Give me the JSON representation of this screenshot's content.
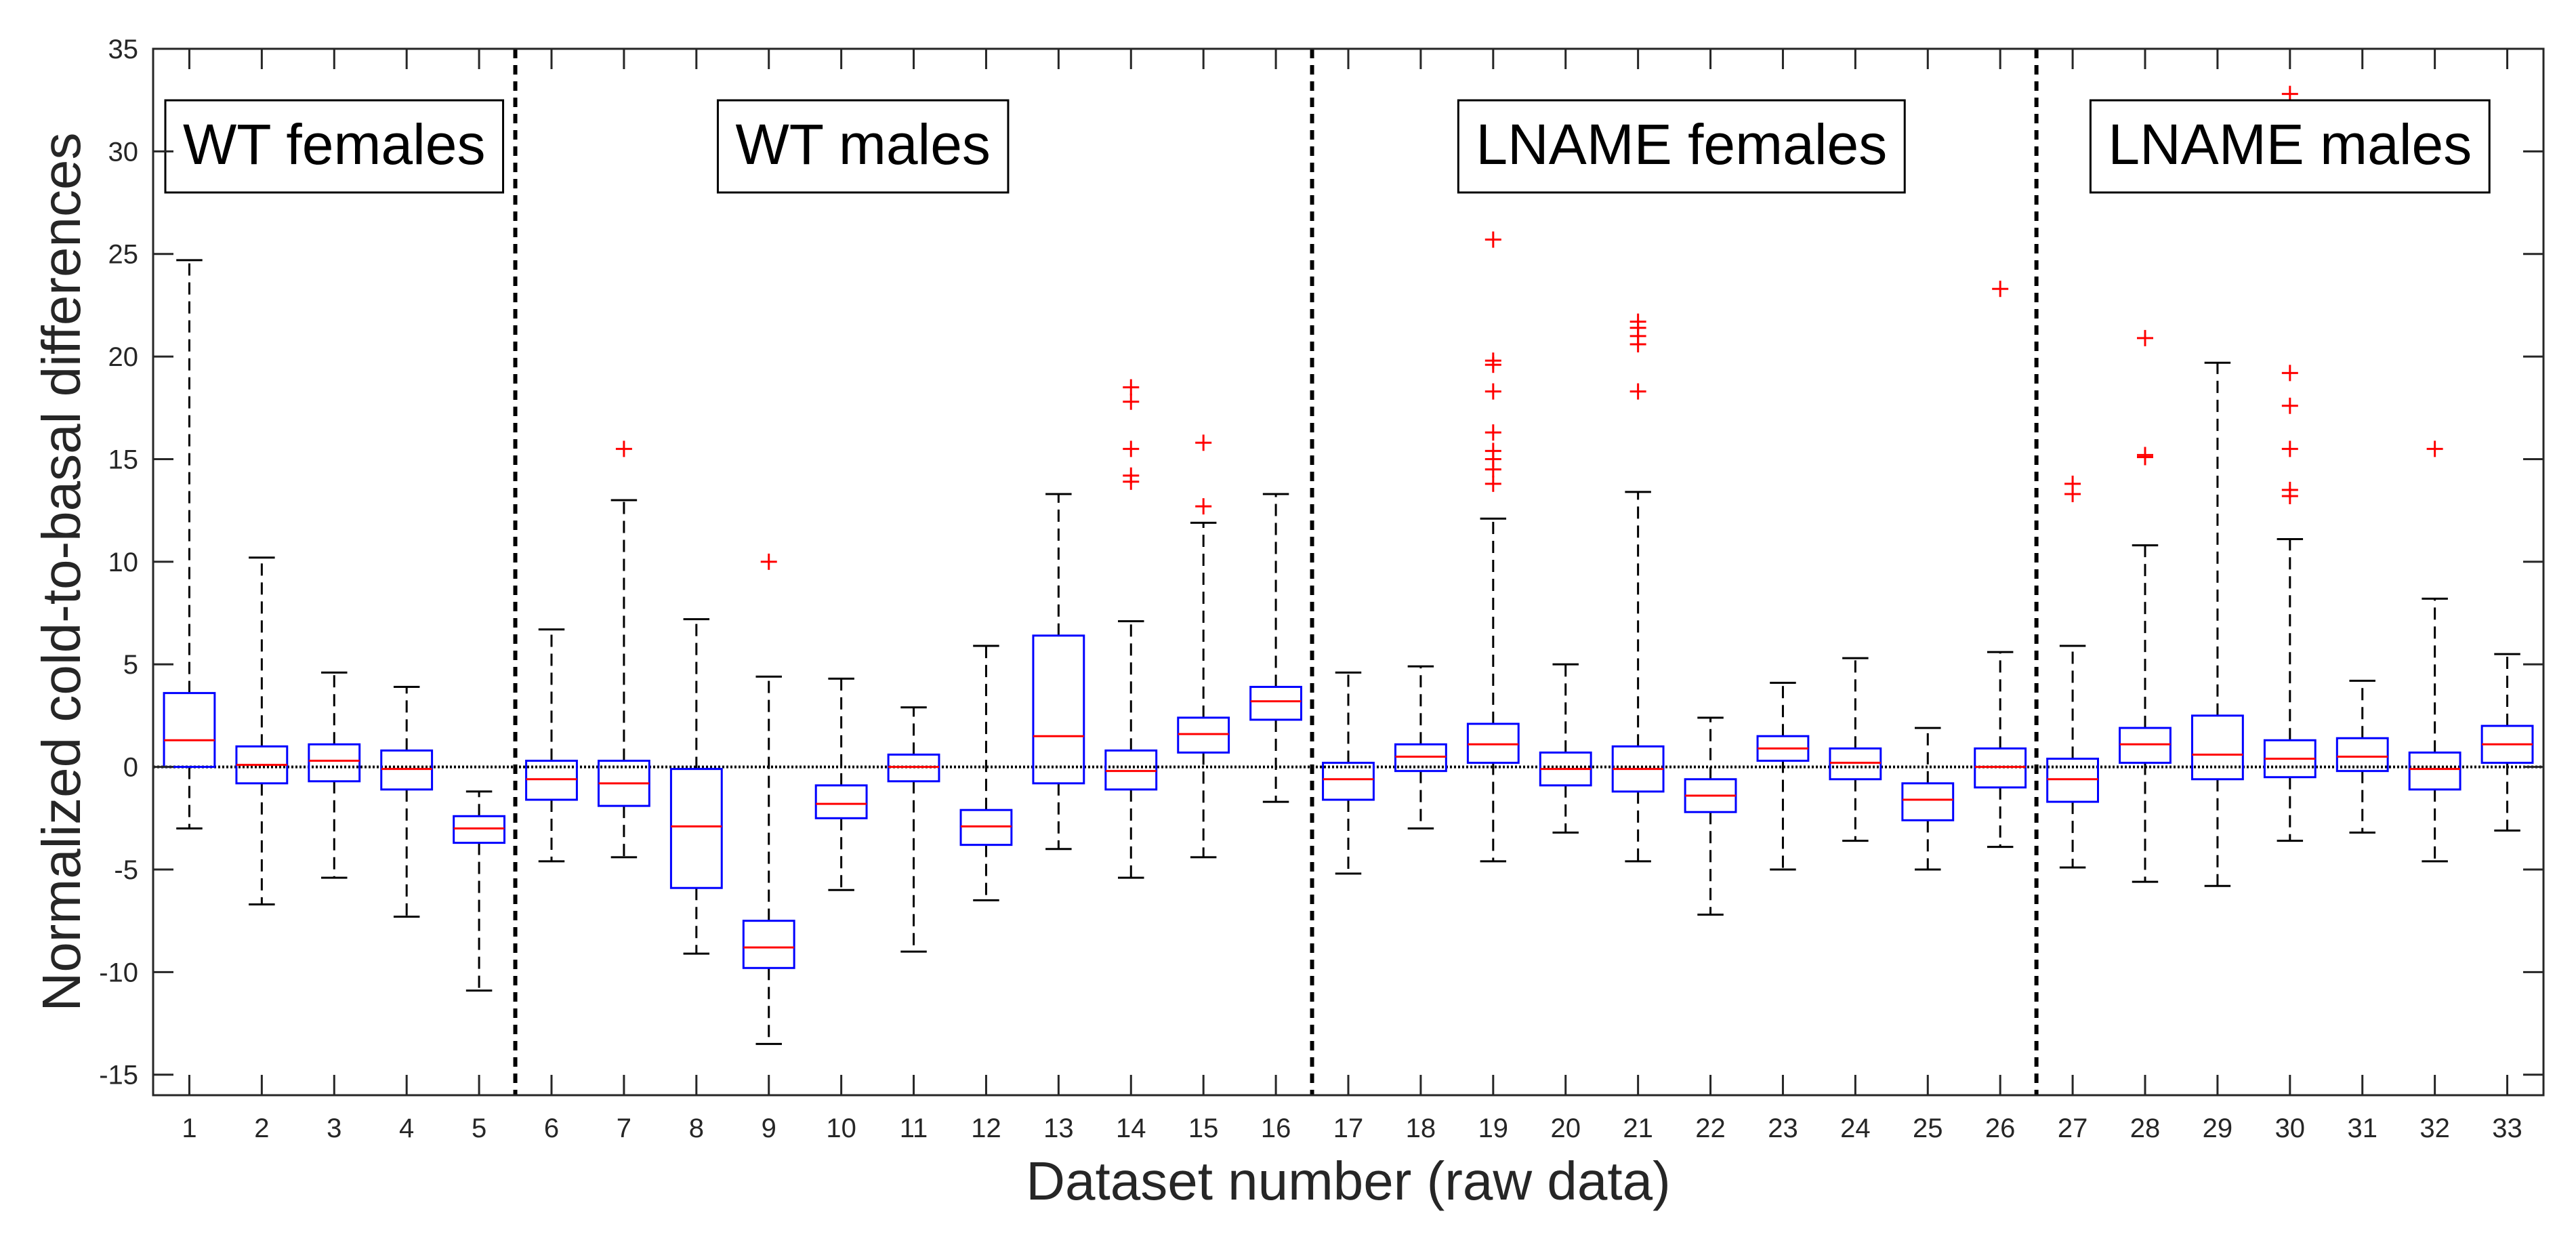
{
  "chart_data": {
    "type": "box",
    "title": "",
    "xlabel": "Dataset number (raw data)",
    "ylabel": "Normalized cold-to-basal differences",
    "xlim": [
      0.5,
      33.5
    ],
    "ylim": [
      -16,
      35
    ],
    "yticks": [
      -15,
      -10,
      -5,
      0,
      5,
      10,
      15,
      20,
      25,
      30,
      35
    ],
    "xticks": [
      1,
      2,
      3,
      4,
      5,
      6,
      7,
      8,
      9,
      10,
      11,
      12,
      13,
      14,
      15,
      16,
      17,
      18,
      19,
      20,
      21,
      22,
      23,
      24,
      25,
      26,
      27,
      28,
      29,
      30,
      31,
      32,
      33
    ],
    "reference_line_y": 0,
    "group_dividers_x": [
      5.5,
      16.5,
      26.5
    ],
    "groups": [
      {
        "label": "WT females",
        "center_x": 3.0
      },
      {
        "label": "WT males",
        "center_x": 10.3
      },
      {
        "label": "LNAME females",
        "center_x": 21.6
      },
      {
        "label": "LNAME males",
        "center_x": 30.0
      }
    ],
    "colors": {
      "box": "#0000ff",
      "median": "#ff0000",
      "outlier": "#ff0000",
      "whisker": "#000000",
      "axis": "#262626"
    },
    "boxes": [
      {
        "x": 1,
        "q1": 0.0,
        "median": 1.3,
        "q3": 3.6,
        "whisker_low": -3.0,
        "whisker_high": 24.7,
        "outliers": []
      },
      {
        "x": 2,
        "q1": -0.8,
        "median": 0.1,
        "q3": 1.0,
        "whisker_low": -6.7,
        "whisker_high": 10.2,
        "outliers": []
      },
      {
        "x": 3,
        "q1": -0.7,
        "median": 0.3,
        "q3": 1.1,
        "whisker_low": -5.4,
        "whisker_high": 4.6,
        "outliers": []
      },
      {
        "x": 4,
        "q1": -1.1,
        "median": -0.1,
        "q3": 0.8,
        "whisker_low": -7.3,
        "whisker_high": 3.9,
        "outliers": []
      },
      {
        "x": 5,
        "q1": -3.7,
        "median": -3.0,
        "q3": -2.4,
        "whisker_low": -10.9,
        "whisker_high": -1.2,
        "outliers": []
      },
      {
        "x": 6,
        "q1": -1.6,
        "median": -0.6,
        "q3": 0.3,
        "whisker_low": -4.6,
        "whisker_high": 6.7,
        "outliers": []
      },
      {
        "x": 7,
        "q1": -1.9,
        "median": -0.8,
        "q3": 0.3,
        "whisker_low": -4.4,
        "whisker_high": 13.0,
        "outliers": [
          15.5
        ]
      },
      {
        "x": 8,
        "q1": -5.9,
        "median": -2.9,
        "q3": -0.1,
        "whisker_low": -9.1,
        "whisker_high": 7.2,
        "outliers": []
      },
      {
        "x": 9,
        "q1": -9.8,
        "median": -8.8,
        "q3": -7.5,
        "whisker_low": -13.5,
        "whisker_high": 4.4,
        "outliers": [
          10.0
        ]
      },
      {
        "x": 10,
        "q1": -2.5,
        "median": -1.8,
        "q3": -0.9,
        "whisker_low": -6.0,
        "whisker_high": 4.3,
        "outliers": []
      },
      {
        "x": 11,
        "q1": -0.7,
        "median": 0.0,
        "q3": 0.6,
        "whisker_low": -9.0,
        "whisker_high": 2.9,
        "outliers": []
      },
      {
        "x": 12,
        "q1": -3.8,
        "median": -2.9,
        "q3": -2.1,
        "whisker_low": -6.5,
        "whisker_high": 5.9,
        "outliers": []
      },
      {
        "x": 13,
        "q1": -0.8,
        "median": 1.5,
        "q3": 6.4,
        "whisker_low": -4.0,
        "whisker_high": 13.3,
        "outliers": []
      },
      {
        "x": 14,
        "q1": -1.1,
        "median": -0.2,
        "q3": 0.8,
        "whisker_low": -5.4,
        "whisker_high": 7.1,
        "outliers": [
          13.9,
          14.2,
          15.5,
          17.8,
          18.5
        ]
      },
      {
        "x": 15,
        "q1": 0.7,
        "median": 1.6,
        "q3": 2.4,
        "whisker_low": -4.4,
        "whisker_high": 11.9,
        "outliers": [
          12.7,
          15.8
        ]
      },
      {
        "x": 16,
        "q1": 2.3,
        "median": 3.2,
        "q3": 3.9,
        "whisker_low": -1.7,
        "whisker_high": 13.3,
        "outliers": []
      },
      {
        "x": 17,
        "q1": -1.6,
        "median": -0.6,
        "q3": 0.2,
        "whisker_low": -5.2,
        "whisker_high": 4.6,
        "outliers": []
      },
      {
        "x": 18,
        "q1": -0.2,
        "median": 0.5,
        "q3": 1.1,
        "whisker_low": -3.0,
        "whisker_high": 4.9,
        "outliers": []
      },
      {
        "x": 19,
        "q1": 0.2,
        "median": 1.1,
        "q3": 2.1,
        "whisker_low": -4.6,
        "whisker_high": 12.1,
        "outliers": [
          13.8,
          14.5,
          15.0,
          15.4,
          16.3,
          18.3,
          19.6,
          19.8,
          25.7
        ]
      },
      {
        "x": 20,
        "q1": -0.9,
        "median": -0.1,
        "q3": 0.7,
        "whisker_low": -3.2,
        "whisker_high": 5.0,
        "outliers": []
      },
      {
        "x": 21,
        "q1": -1.2,
        "median": -0.1,
        "q3": 1.0,
        "whisker_low": -4.6,
        "whisker_high": 13.4,
        "outliers": [
          18.3,
          20.6,
          21.0,
          21.4,
          21.7
        ]
      },
      {
        "x": 22,
        "q1": -2.2,
        "median": -1.4,
        "q3": -0.6,
        "whisker_low": -7.2,
        "whisker_high": 2.4,
        "outliers": []
      },
      {
        "x": 23,
        "q1": 0.3,
        "median": 0.9,
        "q3": 1.5,
        "whisker_low": -5.0,
        "whisker_high": 4.1,
        "outliers": []
      },
      {
        "x": 24,
        "q1": -0.6,
        "median": 0.2,
        "q3": 0.9,
        "whisker_low": -3.6,
        "whisker_high": 5.3,
        "outliers": []
      },
      {
        "x": 25,
        "q1": -2.6,
        "median": -1.6,
        "q3": -0.8,
        "whisker_low": -5.0,
        "whisker_high": 1.9,
        "outliers": []
      },
      {
        "x": 26,
        "q1": -1.0,
        "median": 0.0,
        "q3": 0.9,
        "whisker_low": -3.9,
        "whisker_high": 5.6,
        "outliers": [
          23.3
        ]
      },
      {
        "x": 27,
        "q1": -1.7,
        "median": -0.6,
        "q3": 0.4,
        "whisker_low": -4.9,
        "whisker_high": 5.9,
        "outliers": [
          13.3,
          13.8
        ]
      },
      {
        "x": 28,
        "q1": 0.2,
        "median": 1.1,
        "q3": 1.9,
        "whisker_low": -5.6,
        "whisker_high": 10.8,
        "outliers": [
          15.1,
          15.2,
          20.9
        ]
      },
      {
        "x": 29,
        "q1": -0.6,
        "median": 0.6,
        "q3": 2.5,
        "whisker_low": -5.8,
        "whisker_high": 19.7,
        "outliers": []
      },
      {
        "x": 30,
        "q1": -0.5,
        "median": 0.4,
        "q3": 1.3,
        "whisker_low": -3.6,
        "whisker_high": 11.1,
        "outliers": [
          13.2,
          13.5,
          15.5,
          17.6,
          19.2,
          32.8
        ]
      },
      {
        "x": 31,
        "q1": -0.2,
        "median": 0.5,
        "q3": 1.4,
        "whisker_low": -3.2,
        "whisker_high": 4.2,
        "outliers": []
      },
      {
        "x": 32,
        "q1": -1.1,
        "median": -0.1,
        "q3": 0.7,
        "whisker_low": -4.6,
        "whisker_high": 8.2,
        "outliers": [
          15.5
        ]
      },
      {
        "x": 33,
        "q1": 0.2,
        "median": 1.1,
        "q3": 2.0,
        "whisker_low": -3.1,
        "whisker_high": 5.5,
        "outliers": []
      }
    ]
  }
}
